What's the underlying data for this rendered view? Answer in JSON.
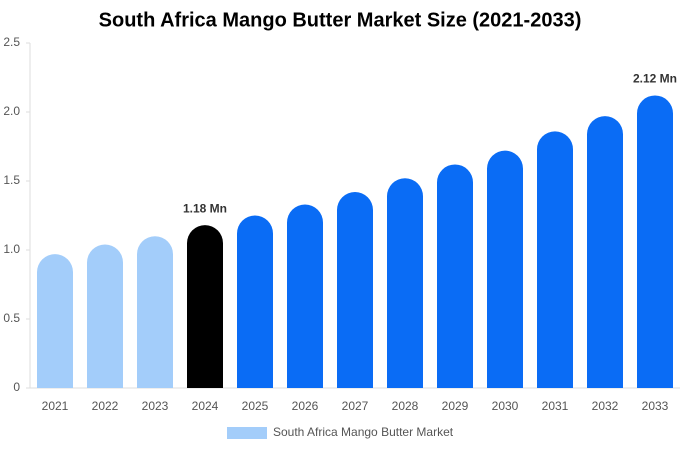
{
  "chart_data": {
    "type": "bar",
    "title": "South Africa Mango Butter Market Size (2021-2033)",
    "categories": [
      "2021",
      "2022",
      "2023",
      "2024",
      "2025",
      "2026",
      "2027",
      "2028",
      "2029",
      "2030",
      "2031",
      "2032",
      "2033"
    ],
    "series": [
      {
        "name": "South Africa Mango Butter Market",
        "color": "#a3cdfa",
        "values": [
          0.97,
          1.04,
          1.1,
          1.18,
          1.25,
          1.33,
          1.42,
          1.52,
          1.62,
          1.72,
          1.86,
          1.97,
          2.12
        ],
        "value_labels": [
          null,
          null,
          null,
          "1.18 Mn",
          null,
          null,
          null,
          null,
          null,
          null,
          null,
          null,
          "2.12 Mn"
        ],
        "colors": [
          "#a3cdfa",
          "#a3cdfa",
          "#a3cdfa",
          "#000000",
          "#0a6cf5",
          "#0a6cf5",
          "#0a6cf5",
          "#0a6cf5",
          "#0a6cf5",
          "#0a6cf5",
          "#0a6cf5",
          "#0a6cf5",
          "#0a6cf5"
        ]
      }
    ],
    "ylim": [
      0,
      2.5
    ],
    "yticks": [
      0,
      0.5,
      {
        "value": 1,
        "label": "1.0"
      },
      1.5,
      {
        "value": 2,
        "label": "2.0"
      },
      2.5
    ],
    "grid": false,
    "legend": "bottom"
  }
}
